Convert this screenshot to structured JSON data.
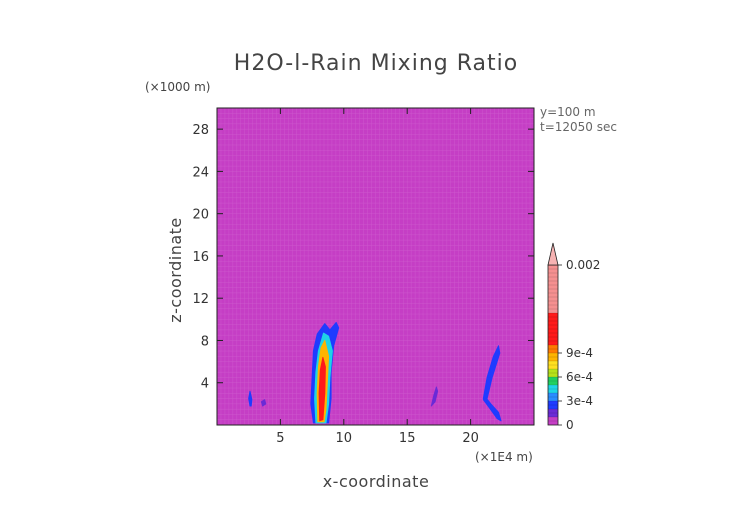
{
  "chart_data": {
    "type": "heatmap",
    "title": "H2O-l-Rain Mixing Ratio",
    "xlabel": "x-coordinate",
    "ylabel": "z-coordinate",
    "x_unit": "(×1E4 m)",
    "y_unit": "(×1000 m)",
    "xlim": [
      0,
      25
    ],
    "ylim": [
      0,
      30
    ],
    "x_ticks": [
      5,
      10,
      15,
      20
    ],
    "y_ticks": [
      4,
      8,
      12,
      16,
      20,
      24,
      28
    ],
    "annotations": [
      "y=100 m",
      "t=12050 sec"
    ],
    "background_value": 0,
    "background_color": "#c53ec5",
    "colorbar": {
      "min": 0,
      "max": 0.002,
      "labels": [
        {
          "value": 0,
          "text": "0"
        },
        {
          "value": 0.0003,
          "text": "3e-4"
        },
        {
          "value": 0.0006,
          "text": "6e-4"
        },
        {
          "value": 0.0009,
          "text": "9e-4"
        },
        {
          "value": 0.002,
          "text": "0.002"
        }
      ],
      "bands": [
        {
          "from": 0,
          "to": 0.0001,
          "color": "#c53ec5"
        },
        {
          "from": 0.0001,
          "to": 0.0002,
          "color": "#6a2bd6"
        },
        {
          "from": 0.0002,
          "to": 0.0003,
          "color": "#1f3bff"
        },
        {
          "from": 0.0003,
          "to": 0.0004,
          "color": "#2b8cff"
        },
        {
          "from": 0.0004,
          "to": 0.0005,
          "color": "#1ed4e6"
        },
        {
          "from": 0.0005,
          "to": 0.0006,
          "color": "#20d060"
        },
        {
          "from": 0.0006,
          "to": 0.0007,
          "color": "#b6e21a"
        },
        {
          "from": 0.0007,
          "to": 0.0008,
          "color": "#ffe020"
        },
        {
          "from": 0.0008,
          "to": 0.0009,
          "color": "#ffb400"
        },
        {
          "from": 0.0009,
          "to": 0.001,
          "color": "#ff7a00"
        },
        {
          "from": 0.001,
          "to": 0.0014,
          "color": "#ff1a1a"
        },
        {
          "from": 0.0014,
          "to": 0.002,
          "color": "#f59090"
        }
      ],
      "overflow_color": "#f7b3b3"
    },
    "features": [
      {
        "name": "main-rain-column",
        "points": [
          [
            7.6,
            0.2
          ],
          [
            7.4,
            2.0
          ],
          [
            7.5,
            4.5
          ],
          [
            7.6,
            7.0
          ],
          [
            7.9,
            8.6
          ],
          [
            8.5,
            9.6
          ],
          [
            8.9,
            9.0
          ],
          [
            9.4,
            9.7
          ],
          [
            9.6,
            9.2
          ],
          [
            9.2,
            7.5
          ],
          [
            9.0,
            5.0
          ],
          [
            9.0,
            2.5
          ],
          [
            8.8,
            0.2
          ]
        ],
        "color": "#1f3bff"
      },
      {
        "name": "main-rain-inner",
        "points": [
          [
            7.8,
            0.2
          ],
          [
            7.7,
            2.5
          ],
          [
            7.8,
            5.0
          ],
          [
            8.0,
            7.0
          ],
          [
            8.4,
            8.7
          ],
          [
            8.8,
            8.4
          ],
          [
            9.1,
            7.0
          ],
          [
            8.9,
            4.5
          ],
          [
            8.8,
            2.0
          ],
          [
            8.6,
            0.2
          ]
        ],
        "color": "#1ed4e6"
      },
      {
        "name": "main-rain-core",
        "points": [
          [
            7.95,
            0.3
          ],
          [
            7.9,
            3.0
          ],
          [
            8.0,
            5.5
          ],
          [
            8.2,
            7.3
          ],
          [
            8.5,
            8.0
          ],
          [
            8.8,
            6.5
          ],
          [
            8.7,
            4.0
          ],
          [
            8.6,
            1.5
          ],
          [
            8.45,
            0.3
          ]
        ],
        "color": "#ffb400"
      },
      {
        "name": "main-rain-peak",
        "points": [
          [
            8.1,
            0.4
          ],
          [
            8.05,
            3.0
          ],
          [
            8.15,
            5.2
          ],
          [
            8.35,
            6.4
          ],
          [
            8.55,
            5.5
          ],
          [
            8.5,
            3.0
          ],
          [
            8.35,
            0.5
          ]
        ],
        "color": "#ff1a1a"
      },
      {
        "name": "left-streak-1",
        "points": [
          [
            2.6,
            1.8
          ],
          [
            2.5,
            2.5
          ],
          [
            2.6,
            3.2
          ],
          [
            2.75,
            2.4
          ],
          [
            2.7,
            1.8
          ]
        ],
        "color": "#1f3bff"
      },
      {
        "name": "left-streak-2",
        "points": [
          [
            3.6,
            1.8
          ],
          [
            3.5,
            2.2
          ],
          [
            3.75,
            2.4
          ],
          [
            3.85,
            2.0
          ]
        ],
        "color": "#6a2bd6"
      },
      {
        "name": "right-streak-1",
        "points": [
          [
            21.0,
            2.5
          ],
          [
            21.3,
            4.5
          ],
          [
            21.8,
            6.5
          ],
          [
            22.2,
            7.5
          ],
          [
            22.3,
            6.8
          ],
          [
            21.7,
            4.5
          ],
          [
            21.3,
            2.5
          ]
        ],
        "color": "#1f3bff"
      },
      {
        "name": "right-streak-2",
        "points": [
          [
            21.0,
            2.4
          ],
          [
            21.5,
            1.6
          ],
          [
            22.1,
            0.6
          ],
          [
            22.4,
            0.4
          ],
          [
            22.2,
            1.2
          ],
          [
            21.6,
            2.0
          ],
          [
            21.2,
            2.6
          ]
        ],
        "color": "#1f3bff"
      },
      {
        "name": "mid-streak",
        "points": [
          [
            16.9,
            1.8
          ],
          [
            17.1,
            2.8
          ],
          [
            17.3,
            3.6
          ],
          [
            17.4,
            3.2
          ],
          [
            17.2,
            2.2
          ]
        ],
        "color": "#6a2bd6"
      }
    ]
  }
}
